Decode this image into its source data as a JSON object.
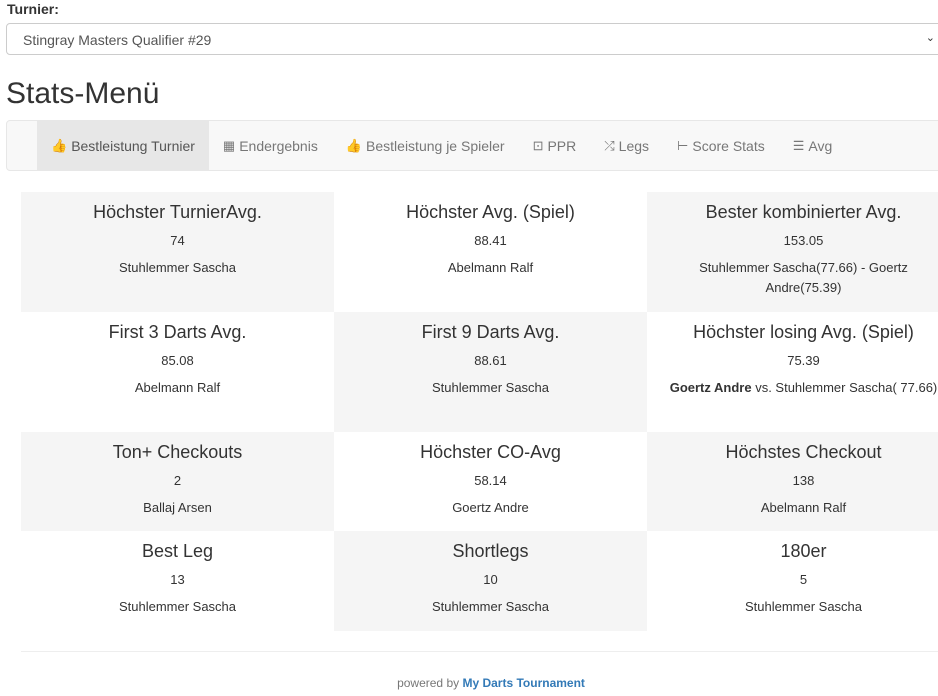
{
  "tournament": {
    "label": "Turnier:",
    "selected": "Stingray Masters Qualifier #29"
  },
  "title": "Stats-Menü",
  "nav": [
    {
      "label": "Bestleistung Turnier",
      "icon": "thumbs-up-icon",
      "glyph": "👍",
      "active": true
    },
    {
      "label": "Endergebnis",
      "icon": "calendar-icon",
      "glyph": "▦"
    },
    {
      "label": "Bestleistung je Spieler",
      "icon": "thumbs-up-icon",
      "glyph": "👍"
    },
    {
      "label": "PPR",
      "icon": "scoreboard-icon",
      "glyph": "⊡"
    },
    {
      "label": "Legs",
      "icon": "random-icon",
      "glyph": "⤮"
    },
    {
      "label": "Score Stats",
      "icon": "align-left-icon",
      "glyph": "⊢"
    },
    {
      "label": "Avg",
      "icon": "tasks-icon",
      "glyph": "☰"
    }
  ],
  "stats": [
    {
      "title": "Höchster TurnierAvg.",
      "value": "74",
      "player": "Stuhlemmer Sascha"
    },
    {
      "title": "Höchster Avg. (Spiel)",
      "value": "88.41",
      "player": "Abelmann Ralf"
    },
    {
      "title": "Bester kombinierter Avg.",
      "value": "153.05",
      "player": "Stuhlemmer Sascha(77.66) - Goertz Andre(75.39)"
    },
    {
      "title": "First 3 Darts Avg.",
      "value": "85.08",
      "player": "Abelmann Ralf"
    },
    {
      "title": "First 9 Darts Avg.",
      "value": "88.61",
      "player": "Stuhlemmer Sascha"
    },
    {
      "title": "Höchster losing Avg. (Spiel)",
      "value": "75.39",
      "player_bold": "Goertz Andre",
      "player": " vs. Stuhlemmer Sascha( 77.66)"
    },
    {
      "title": "Ton+ Checkouts",
      "value": "2",
      "player": "Ballaj Arsen"
    },
    {
      "title": "Höchster CO-Avg",
      "value": "58.14",
      "player": "Goertz Andre"
    },
    {
      "title": "Höchstes Checkout",
      "value": "138",
      "player": "Abelmann Ralf"
    },
    {
      "title": "Best Leg",
      "value": "13",
      "player": "Stuhlemmer Sascha"
    },
    {
      "title": "Shortlegs",
      "value": "10",
      "player": "Stuhlemmer Sascha"
    },
    {
      "title": "180er",
      "value": "5",
      "player": "Stuhlemmer Sascha"
    }
  ],
  "footer": {
    "prefix": "powered by ",
    "link": "My Darts Tournament"
  }
}
